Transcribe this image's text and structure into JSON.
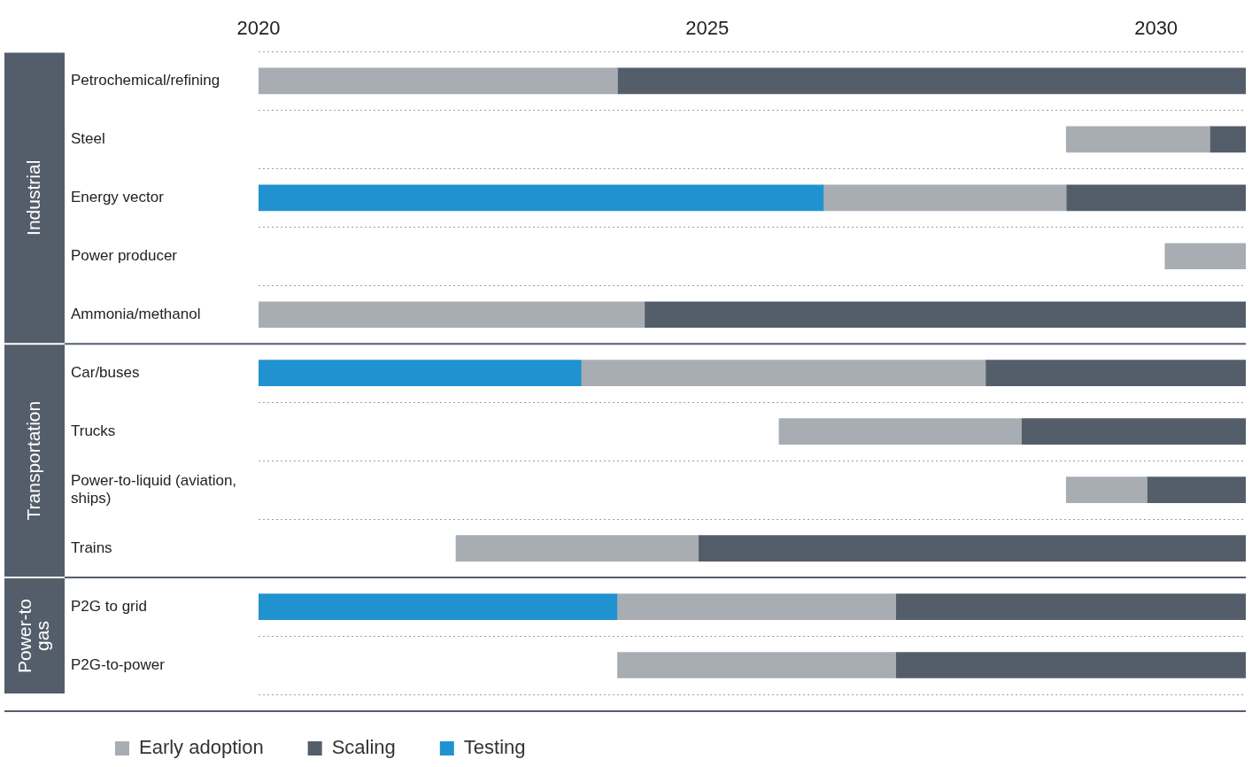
{
  "chart_data": {
    "type": "bar",
    "orientation": "horizontal",
    "stacked": false,
    "categories": [
      "Petrochemical/refining",
      "Steel",
      "Energy vector",
      "Power producer",
      "Ammonia/methanol",
      "Car/buses",
      "Trucks",
      "Power-to-liquid (aviation, ships)",
      "Trains",
      "P2G to grid",
      "P2G-to-power"
    ],
    "series": [
      {
        "name": "Early adoption",
        "color": "#a7adb3",
        "base": [
          2020,
          2029.0,
          2026.3,
          2030.1,
          2020,
          2023.6,
          2025.8,
          2029.0,
          2022.2,
          2024.0,
          2024.0
        ],
        "values": [
          4.0,
          1.6,
          2.7,
          0.9,
          4.3,
          4.5,
          2.7,
          0.9,
          2.7,
          3.1,
          3.1
        ]
      },
      {
        "name": "Scaling",
        "color": "#545e6b",
        "base": [
          2024.0,
          2030.6,
          2029.0,
          null,
          2024.3,
          2028.1,
          2028.5,
          2029.9,
          2024.9,
          2027.1,
          2027.1
        ],
        "values": [
          7.0,
          0.4,
          2.0,
          null,
          6.7,
          2.9,
          2.5,
          1.1,
          6.1,
          3.9,
          3.9
        ]
      },
      {
        "name": "Testing",
        "color": "#2192d0",
        "base": [
          null,
          null,
          2020,
          null,
          null,
          2020,
          null,
          null,
          null,
          2020,
          null
        ],
        "values": [
          null,
          null,
          6.3,
          null,
          null,
          3.6,
          null,
          null,
          null,
          4.0,
          null
        ]
      }
    ],
    "xlim": [
      2020,
      2031
    ],
    "xticks": [
      2020,
      2025,
      2030
    ],
    "grid": "y",
    "legend": "bottom left",
    "ref_lines": [
      {
        "axis": "y",
        "value": "Car/buses",
        "color": "#545e6b"
      },
      {
        "axis": "y",
        "value": "P2G to grid",
        "color": "#545e6b"
      }
    ],
    "annotations": [
      "Industrial",
      "Transportation",
      "Power-to gas"
    ]
  }
}
